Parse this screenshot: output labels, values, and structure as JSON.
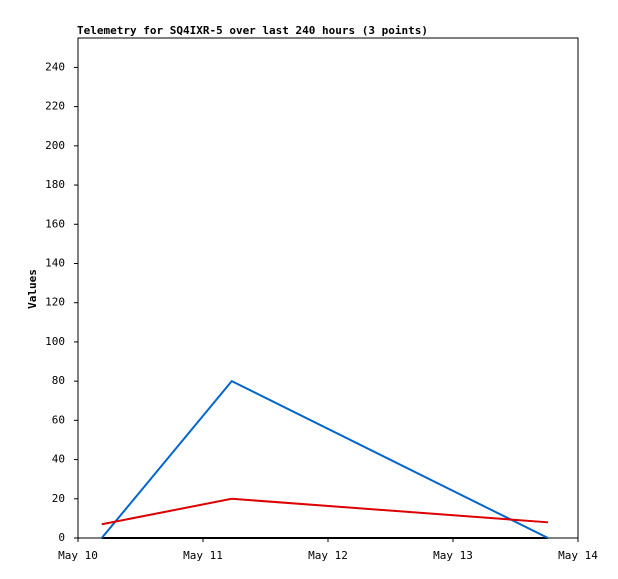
{
  "chart_data": {
    "type": "line",
    "title": "Telemetry for SQ4IXR-5 over last 240 hours (3 points)",
    "y_label": "Values",
    "x": [
      0.19,
      1.23,
      3.76
    ],
    "series": [
      {
        "color": "#000000",
        "values": [
          0,
          0,
          0
        ]
      },
      {
        "color": "#0066cc",
        "values": [
          0,
          80,
          0
        ]
      },
      {
        "color": "#dd0000",
        "values": [
          7,
          20,
          8
        ]
      }
    ],
    "xlim": [
      0,
      4
    ],
    "xticks": [
      {
        "value": 0,
        "label": "May 10"
      },
      {
        "value": 1,
        "label": "May 11"
      },
      {
        "value": 2,
        "label": "May 12"
      },
      {
        "value": 3,
        "label": "May 13"
      },
      {
        "value": 4,
        "label": "May 14"
      }
    ],
    "ylim": [
      0,
      255
    ],
    "yticks": [
      0,
      20,
      40,
      60,
      80,
      100,
      120,
      140,
      160,
      180,
      200,
      220,
      240
    ]
  }
}
